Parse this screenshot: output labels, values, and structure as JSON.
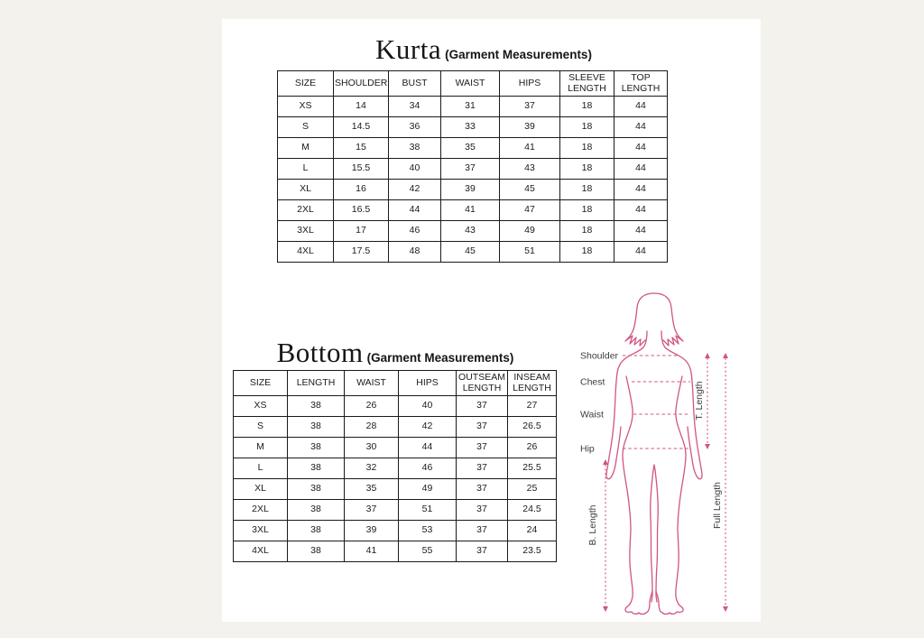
{
  "colors": {
    "page_background": "#f4f2ed",
    "panel_background": "#ffffff",
    "table_border": "#1a1a1a",
    "text": "#1b1b1b",
    "figure_outline_pink": "#d05584",
    "figure_label_gray": "#3c3c3c"
  },
  "kurta": {
    "title": "Kurta",
    "subtitle": "(Garment Measurements)",
    "table": {
      "headers": [
        "SIZE",
        "SHOULDER",
        "BUST",
        "WAIST",
        "HIPS",
        "SLEEVE LENGTH",
        "TOP LENGTH"
      ],
      "rows": [
        [
          "XS",
          "14",
          "34",
          "31",
          "37",
          "18",
          "44"
        ],
        [
          "S",
          "14.5",
          "36",
          "33",
          "39",
          "18",
          "44"
        ],
        [
          "M",
          "15",
          "38",
          "35",
          "41",
          "18",
          "44"
        ],
        [
          "L",
          "15.5",
          "40",
          "37",
          "43",
          "18",
          "44"
        ],
        [
          "XL",
          "16",
          "42",
          "39",
          "45",
          "18",
          "44"
        ],
        [
          "2XL",
          "16.5",
          "44",
          "41",
          "47",
          "18",
          "44"
        ],
        [
          "3XL",
          "17",
          "46",
          "43",
          "49",
          "18",
          "44"
        ],
        [
          "4XL",
          "17.5",
          "48",
          "45",
          "51",
          "18",
          "44"
        ]
      ]
    }
  },
  "bottom": {
    "title": "Bottom",
    "subtitle": "(Garment Measurements)",
    "table": {
      "headers": [
        "SIZE",
        "LENGTH",
        "WAIST",
        "HIPS",
        "OUTSEAM LENGTH",
        "INSEAM LENGTH"
      ],
      "rows": [
        [
          "XS",
          "38",
          "26",
          "40",
          "37",
          "27"
        ],
        [
          "S",
          "38",
          "28",
          "42",
          "37",
          "26.5"
        ],
        [
          "M",
          "38",
          "30",
          "44",
          "37",
          "26"
        ],
        [
          "L",
          "38",
          "32",
          "46",
          "37",
          "25.5"
        ],
        [
          "XL",
          "38",
          "35",
          "49",
          "37",
          "25"
        ],
        [
          "2XL",
          "38",
          "37",
          "51",
          "37",
          "24.5"
        ],
        [
          "3XL",
          "38",
          "39",
          "53",
          "37",
          "24"
        ],
        [
          "4XL",
          "38",
          "41",
          "55",
          "37",
          "23.5"
        ]
      ]
    }
  },
  "figure": {
    "labels": {
      "shoulder": "Shoulder",
      "chest": "Chest",
      "waist": "Waist",
      "hip": "Hip",
      "t_length": "T. Length",
      "b_length": "B. Length",
      "full_length": "Full Length"
    }
  }
}
